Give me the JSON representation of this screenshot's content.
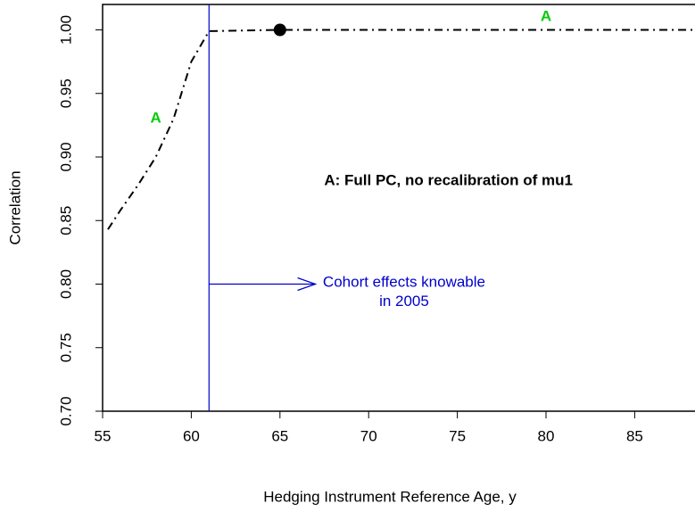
{
  "chart_data": {
    "type": "line",
    "x_label": "Hedging Instrument Reference Age, y",
    "y_label": "Correlation",
    "xlim": [
      55,
      88.4
    ],
    "ylim": [
      0.7,
      1.02
    ],
    "xticks": [
      55,
      60,
      65,
      70,
      75,
      80,
      85
    ],
    "yticks": [
      {
        "value": 0.7,
        "label": "0.70"
      },
      {
        "value": 0.75,
        "label": "0.75"
      },
      {
        "value": 0.8,
        "label": "0.80"
      },
      {
        "value": 0.85,
        "label": "0.85"
      },
      {
        "value": 0.9,
        "label": "0.90"
      },
      {
        "value": 0.95,
        "label": "0.95"
      },
      {
        "value": 1.0,
        "label": "1.00"
      }
    ],
    "x": [
      55.3,
      56,
      57,
      58,
      59,
      60,
      61,
      65,
      70,
      75,
      80,
      85,
      88.4
    ],
    "series": [
      {
        "color": "#000000",
        "values": [
          0.843,
          0.858,
          0.878,
          0.9,
          0.93,
          0.975,
          0.999,
          1.0,
          1.0,
          1.0,
          1.0,
          1.0,
          1.0
        ]
      }
    ],
    "point": {
      "x": 65,
      "y": 1.0,
      "color": "#000000"
    },
    "vline": {
      "x": 61,
      "color": "#0000cc"
    },
    "arrow": {
      "x0": 61,
      "x1": 67,
      "y": 0.8,
      "color": "#0000cc"
    },
    "annotations": [
      {
        "text": "A",
        "x": 58,
        "y": 0.93,
        "color": "#00cc00",
        "bold": true
      },
      {
        "text": "A",
        "x": 80,
        "y": 1.01,
        "color": "#00cc00",
        "bold": true
      },
      {
        "text": "A: Full PC, no recalibration of mu1",
        "x": 74.5,
        "y": 0.881,
        "color": "#000000",
        "bold": true
      },
      {
        "text": "Cohort effects knowable",
        "x": 72,
        "y": 0.801,
        "color": "#0000cc",
        "bold": false
      },
      {
        "text": "in 2005",
        "x": 72,
        "y": 0.786,
        "color": "#0000cc",
        "bold": false
      }
    ]
  }
}
